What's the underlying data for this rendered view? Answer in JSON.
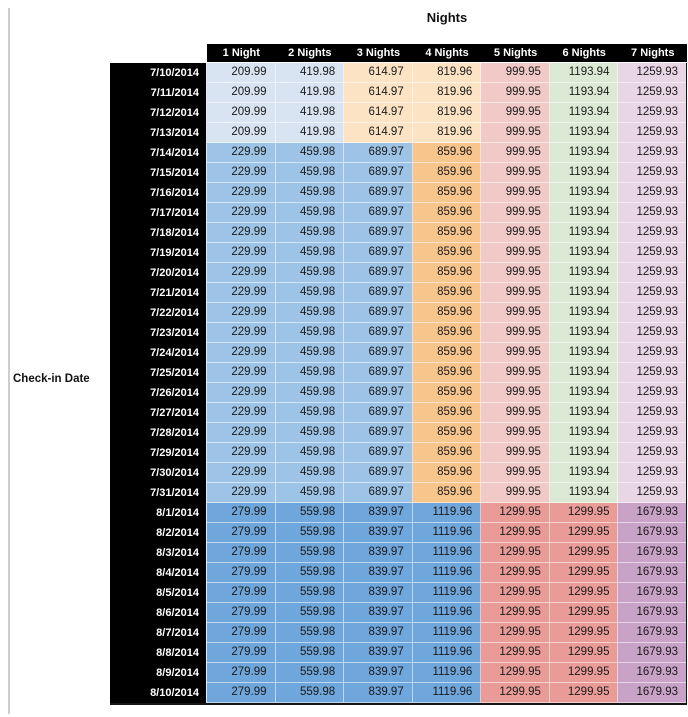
{
  "chart_data": {
    "type": "table",
    "title": "Nights",
    "row_axis_label": "Check-in Date",
    "columns": [
      "1 Night",
      "2 Nights",
      "3 Nights",
      "4 Nights",
      "5 Nights",
      "6 Nights",
      "7 Nights"
    ],
    "rows": [
      {
        "date": "7/10/2014",
        "group": "A",
        "values": [
          "209.99",
          "419.98",
          "614.97",
          "819.96",
          "999.95",
          "1193.94",
          "1259.93"
        ]
      },
      {
        "date": "7/11/2014",
        "group": "A",
        "values": [
          "209.99",
          "419.98",
          "614.97",
          "819.96",
          "999.95",
          "1193.94",
          "1259.93"
        ]
      },
      {
        "date": "7/12/2014",
        "group": "A",
        "values": [
          "209.99",
          "419.98",
          "614.97",
          "819.96",
          "999.95",
          "1193.94",
          "1259.93"
        ]
      },
      {
        "date": "7/13/2014",
        "group": "A",
        "values": [
          "209.99",
          "419.98",
          "614.97",
          "819.96",
          "999.95",
          "1193.94",
          "1259.93"
        ]
      },
      {
        "date": "7/14/2014",
        "group": "B",
        "values": [
          "229.99",
          "459.98",
          "689.97",
          "859.96",
          "999.95",
          "1193.94",
          "1259.93"
        ]
      },
      {
        "date": "7/15/2014",
        "group": "B",
        "values": [
          "229.99",
          "459.98",
          "689.97",
          "859.96",
          "999.95",
          "1193.94",
          "1259.93"
        ]
      },
      {
        "date": "7/16/2014",
        "group": "B",
        "values": [
          "229.99",
          "459.98",
          "689.97",
          "859.96",
          "999.95",
          "1193.94",
          "1259.93"
        ]
      },
      {
        "date": "7/17/2014",
        "group": "B",
        "values": [
          "229.99",
          "459.98",
          "689.97",
          "859.96",
          "999.95",
          "1193.94",
          "1259.93"
        ]
      },
      {
        "date": "7/18/2014",
        "group": "B",
        "values": [
          "229.99",
          "459.98",
          "689.97",
          "859.96",
          "999.95",
          "1193.94",
          "1259.93"
        ]
      },
      {
        "date": "7/19/2014",
        "group": "B",
        "values": [
          "229.99",
          "459.98",
          "689.97",
          "859.96",
          "999.95",
          "1193.94",
          "1259.93"
        ]
      },
      {
        "date": "7/20/2014",
        "group": "B",
        "values": [
          "229.99",
          "459.98",
          "689.97",
          "859.96",
          "999.95",
          "1193.94",
          "1259.93"
        ]
      },
      {
        "date": "7/21/2014",
        "group": "B",
        "values": [
          "229.99",
          "459.98",
          "689.97",
          "859.96",
          "999.95",
          "1193.94",
          "1259.93"
        ]
      },
      {
        "date": "7/22/2014",
        "group": "B",
        "values": [
          "229.99",
          "459.98",
          "689.97",
          "859.96",
          "999.95",
          "1193.94",
          "1259.93"
        ]
      },
      {
        "date": "7/23/2014",
        "group": "B",
        "values": [
          "229.99",
          "459.98",
          "689.97",
          "859.96",
          "999.95",
          "1193.94",
          "1259.93"
        ]
      },
      {
        "date": "7/24/2014",
        "group": "B",
        "values": [
          "229.99",
          "459.98",
          "689.97",
          "859.96",
          "999.95",
          "1193.94",
          "1259.93"
        ]
      },
      {
        "date": "7/25/2014",
        "group": "B",
        "values": [
          "229.99",
          "459.98",
          "689.97",
          "859.96",
          "999.95",
          "1193.94",
          "1259.93"
        ]
      },
      {
        "date": "7/26/2014",
        "group": "B",
        "values": [
          "229.99",
          "459.98",
          "689.97",
          "859.96",
          "999.95",
          "1193.94",
          "1259.93"
        ]
      },
      {
        "date": "7/27/2014",
        "group": "B",
        "values": [
          "229.99",
          "459.98",
          "689.97",
          "859.96",
          "999.95",
          "1193.94",
          "1259.93"
        ]
      },
      {
        "date": "7/28/2014",
        "group": "B",
        "values": [
          "229.99",
          "459.98",
          "689.97",
          "859.96",
          "999.95",
          "1193.94",
          "1259.93"
        ]
      },
      {
        "date": "7/29/2014",
        "group": "B",
        "values": [
          "229.99",
          "459.98",
          "689.97",
          "859.96",
          "999.95",
          "1193.94",
          "1259.93"
        ]
      },
      {
        "date": "7/30/2014",
        "group": "B",
        "values": [
          "229.99",
          "459.98",
          "689.97",
          "859.96",
          "999.95",
          "1193.94",
          "1259.93"
        ]
      },
      {
        "date": "7/31/2014",
        "group": "B",
        "values": [
          "229.99",
          "459.98",
          "689.97",
          "859.96",
          "999.95",
          "1193.94",
          "1259.93"
        ]
      },
      {
        "date": "8/1/2014",
        "group": "C",
        "values": [
          "279.99",
          "559.98",
          "839.97",
          "1119.96",
          "1299.95",
          "1299.95",
          "1679.93"
        ]
      },
      {
        "date": "8/2/2014",
        "group": "C",
        "values": [
          "279.99",
          "559.98",
          "839.97",
          "1119.96",
          "1299.95",
          "1299.95",
          "1679.93"
        ]
      },
      {
        "date": "8/3/2014",
        "group": "C",
        "values": [
          "279.99",
          "559.98",
          "839.97",
          "1119.96",
          "1299.95",
          "1299.95",
          "1679.93"
        ]
      },
      {
        "date": "8/4/2014",
        "group": "C",
        "values": [
          "279.99",
          "559.98",
          "839.97",
          "1119.96",
          "1299.95",
          "1299.95",
          "1679.93"
        ]
      },
      {
        "date": "8/5/2014",
        "group": "C",
        "values": [
          "279.99",
          "559.98",
          "839.97",
          "1119.96",
          "1299.95",
          "1299.95",
          "1679.93"
        ]
      },
      {
        "date": "8/6/2014",
        "group": "C",
        "values": [
          "279.99",
          "559.98",
          "839.97",
          "1119.96",
          "1299.95",
          "1299.95",
          "1679.93"
        ]
      },
      {
        "date": "8/7/2014",
        "group": "C",
        "values": [
          "279.99",
          "559.98",
          "839.97",
          "1119.96",
          "1299.95",
          "1299.95",
          "1679.93"
        ]
      },
      {
        "date": "8/8/2014",
        "group": "C",
        "values": [
          "279.99",
          "559.98",
          "839.97",
          "1119.96",
          "1299.95",
          "1299.95",
          "1679.93"
        ]
      },
      {
        "date": "8/9/2014",
        "group": "C",
        "values": [
          "279.99",
          "559.98",
          "839.97",
          "1119.96",
          "1299.95",
          "1299.95",
          "1679.93"
        ]
      },
      {
        "date": "8/10/2014",
        "group": "C",
        "values": [
          "279.99",
          "559.98",
          "839.97",
          "1119.96",
          "1299.95",
          "1299.95",
          "1679.93"
        ]
      }
    ],
    "group_patterns": {
      "A": [
        "lightBlue",
        "lightBlue",
        "lightOrange",
        "lightOrange",
        "lightRed",
        "lightGreen",
        "lightPurple"
      ],
      "B": [
        "midBlue",
        "midBlue",
        "midBlue",
        "midOrange",
        "lightRed",
        "lightGreen",
        "lightPurple"
      ],
      "C": [
        "darkBlue",
        "darkBlue",
        "darkBlue",
        "darkBlue",
        "darkRed",
        "darkRed",
        "darkPurple"
      ]
    },
    "colors": {
      "lightBlue": "#D8E4F1",
      "midBlue": "#9DC3E6",
      "darkBlue": "#6FA6DB",
      "lightOrange": "#FBE3C3",
      "midOrange": "#F8C68C",
      "lightRed": "#F1C9C7",
      "darkRed": "#E99B98",
      "lightGreen": "#DCEAD5",
      "lightPurple": "#E9D6E4",
      "darkPurple": "#C9A3C7",
      "headerBg": "#000000",
      "headerText": "#FFFFFF",
      "cellText": "#1A1A1A"
    },
    "layout_hints": {
      "legend": "none",
      "grid": "thin light separators between colored cells",
      "header_position": "top row and left column, black background"
    }
  }
}
